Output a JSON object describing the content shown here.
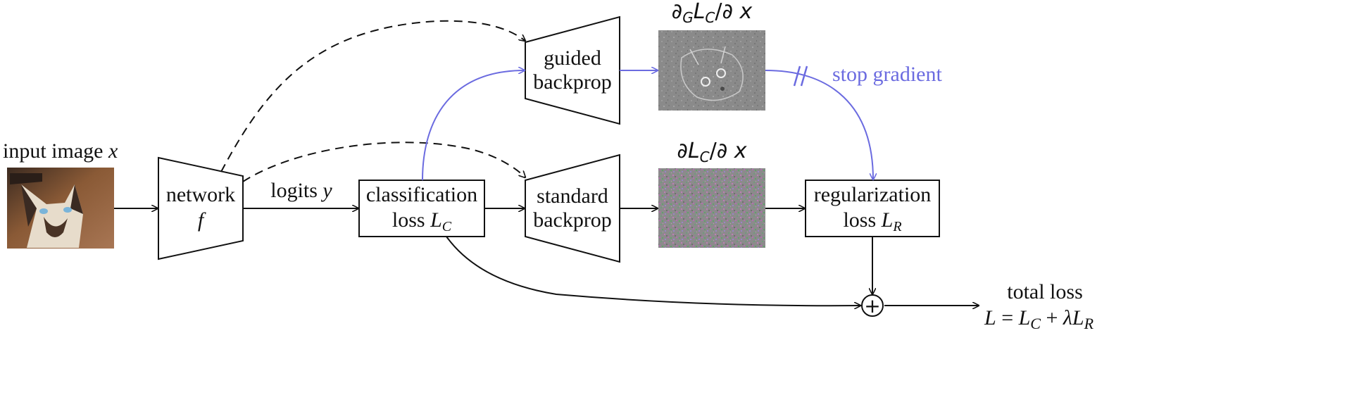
{
  "colors": {
    "ink": "#111111",
    "accent": "#6b6be0"
  },
  "input": {
    "label": "input image",
    "var": "x"
  },
  "network": {
    "line1": "network",
    "line2": "f"
  },
  "logits": {
    "label": "logits",
    "var": "y"
  },
  "classification": {
    "line1": "classification",
    "line2_prefix": "loss",
    "line2_var": "L",
    "line2_sub": "C"
  },
  "guided": {
    "line1": "guided",
    "line2": "backprop"
  },
  "standard": {
    "line1": "standard",
    "line2": "backprop"
  },
  "regularization": {
    "line1": "regularization",
    "line2_prefix": "loss",
    "line2_var": "L",
    "line2_sub": "R"
  },
  "guided_grad": {
    "d1": "∂",
    "d1_sub": "G",
    "num_var": "L",
    "num_sub": "C",
    "slash": "/∂",
    "den_var": "x"
  },
  "standard_grad": {
    "d1": "∂",
    "num_var": "L",
    "num_sub": "C",
    "slash": "/∂",
    "den_var": "x"
  },
  "stop_gradient": "stop gradient",
  "sum_symbol": "+",
  "total": {
    "label": "total loss",
    "lhs": "L",
    "eq": "=",
    "t1": "L",
    "t1_sub": "C",
    "plus": "+",
    "lambda": "λ",
    "t2": "L",
    "t2_sub": "R"
  }
}
